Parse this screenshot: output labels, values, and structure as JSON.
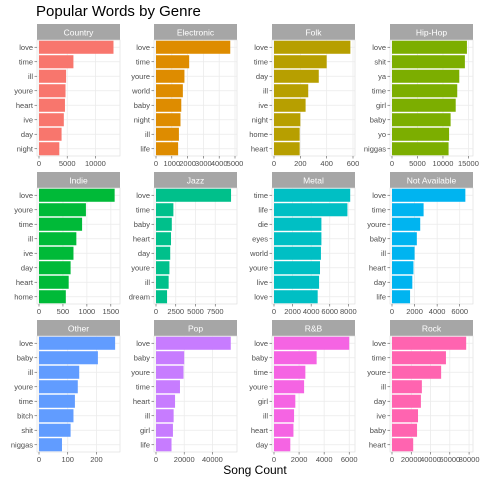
{
  "figure": {
    "title": "Popular Words by Genre",
    "xlabel": "Song Count",
    "panel_strip_color": "#a6a6a6",
    "grid_color": "#ebebeb"
  },
  "chart_data": [
    {
      "type": "bar",
      "orientation": "horizontal",
      "panel": "Country",
      "color": "#f8766d",
      "categories": [
        "love",
        "time",
        "ill",
        "youre",
        "heart",
        "ive",
        "day",
        "night"
      ],
      "values": [
        13200,
        6100,
        4800,
        4700,
        4600,
        4400,
        4000,
        3600
      ],
      "xticks": [
        0,
        5000,
        10000
      ],
      "xlim": [
        0,
        14000
      ]
    },
    {
      "type": "bar",
      "orientation": "horizontal",
      "panel": "Electronic",
      "color": "#de8c00",
      "categories": [
        "love",
        "time",
        "youre",
        "world",
        "baby",
        "night",
        "ill",
        "life"
      ],
      "values": [
        4700,
        2100,
        1800,
        1700,
        1600,
        1550,
        1450,
        1400
      ],
      "xticks": [
        0,
        1000,
        2000,
        3000,
        4000,
        5000
      ],
      "xlim": [
        0,
        5000
      ]
    },
    {
      "type": "bar",
      "orientation": "horizontal",
      "panel": "Folk",
      "color": "#b79f00",
      "categories": [
        "love",
        "time",
        "day",
        "ill",
        "ive",
        "night",
        "home",
        "heart"
      ],
      "values": [
        580,
        400,
        340,
        260,
        240,
        200,
        195,
        195
      ],
      "xticks": [
        0,
        200,
        400,
        600
      ],
      "xlim": [
        0,
        600
      ]
    },
    {
      "type": "bar",
      "orientation": "horizontal",
      "panel": "Hip-Hop",
      "color": "#7cae00",
      "categories": [
        "love",
        "shit",
        "ya",
        "time",
        "girl",
        "baby",
        "yo",
        "niggas"
      ],
      "values": [
        14700,
        14300,
        13200,
        12800,
        12500,
        11500,
        11200,
        11100
      ],
      "xticks": [
        0,
        5000,
        10000,
        15000
      ],
      "xlim": [
        0,
        15500
      ]
    },
    {
      "type": "bar",
      "orientation": "horizontal",
      "panel": "Indie",
      "color": "#00ba38",
      "categories": [
        "love",
        "youre",
        "time",
        "ill",
        "ive",
        "day",
        "heart",
        "home"
      ],
      "values": [
        1580,
        980,
        900,
        780,
        720,
        660,
        620,
        560
      ],
      "xticks": [
        0,
        500,
        1000,
        1500
      ],
      "xlim": [
        0,
        1650
      ]
    },
    {
      "type": "bar",
      "orientation": "horizontal",
      "panel": "Jazz",
      "color": "#00c08b",
      "categories": [
        "love",
        "time",
        "baby",
        "heart",
        "day",
        "youre",
        "ill",
        "dream"
      ],
      "values": [
        9500,
        2200,
        2000,
        1900,
        1800,
        1700,
        1600,
        1400
      ],
      "xticks": [
        0,
        2500,
        5000,
        7500
      ],
      "xlim": [
        0,
        10000
      ]
    },
    {
      "type": "bar",
      "orientation": "horizontal",
      "panel": "Metal",
      "color": "#00bfc4",
      "categories": [
        "time",
        "life",
        "die",
        "eyes",
        "world",
        "youre",
        "live",
        "love"
      ],
      "values": [
        8200,
        7900,
        5100,
        5100,
        5050,
        4950,
        4850,
        4700
      ],
      "xticks": [
        0,
        2000,
        4000,
        6000,
        8000
      ],
      "xlim": [
        0,
        8500
      ]
    },
    {
      "type": "bar",
      "orientation": "horizontal",
      "panel": "Not Available",
      "color": "#00b4f0",
      "categories": [
        "love",
        "time",
        "youre",
        "baby",
        "ill",
        "heart",
        "day",
        "life"
      ],
      "values": [
        6500,
        2800,
        2500,
        2200,
        2000,
        1900,
        1800,
        1600
      ],
      "xticks": [
        0,
        2000,
        4000,
        6000
      ],
      "xlim": [
        0,
        7000
      ]
    },
    {
      "type": "bar",
      "orientation": "horizontal",
      "panel": "Other",
      "color": "#619cff",
      "categories": [
        "love",
        "baby",
        "ill",
        "youre",
        "time",
        "bitch",
        "shit",
        "niggas"
      ],
      "values": [
        265,
        205,
        140,
        135,
        125,
        120,
        110,
        80
      ],
      "xticks": [
        0,
        100,
        200
      ],
      "xlim": [
        0,
        275
      ]
    },
    {
      "type": "bar",
      "orientation": "horizontal",
      "panel": "Pop",
      "color": "#c77cff",
      "categories": [
        "love",
        "baby",
        "youre",
        "time",
        "heart",
        "ill",
        "girl",
        "life"
      ],
      "values": [
        53000,
        20000,
        19500,
        17000,
        13500,
        12500,
        12000,
        11000
      ],
      "xticks": [
        0,
        20000,
        40000
      ],
      "xlim": [
        0,
        56000
      ]
    },
    {
      "type": "bar",
      "orientation": "horizontal",
      "panel": "R&B",
      "color": "#f564e3",
      "categories": [
        "love",
        "baby",
        "time",
        "youre",
        "girl",
        "ill",
        "heart",
        "day"
      ],
      "values": [
        6000,
        3400,
        2500,
        2400,
        1700,
        1600,
        1550,
        1300
      ],
      "xticks": [
        0,
        2000,
        4000,
        6000
      ],
      "xlim": [
        0,
        6300
      ]
    },
    {
      "type": "bar",
      "orientation": "horizontal",
      "panel": "Rock",
      "color": "#ff64b0",
      "categories": [
        "love",
        "time",
        "youre",
        "ill",
        "day",
        "ive",
        "baby",
        "heart"
      ],
      "values": [
        77000,
        56000,
        51000,
        31000,
        30000,
        27000,
        26000,
        22000
      ],
      "xticks": [
        0,
        20000,
        40000,
        60000,
        80000
      ],
      "xlim": [
        0,
        82000
      ]
    }
  ]
}
